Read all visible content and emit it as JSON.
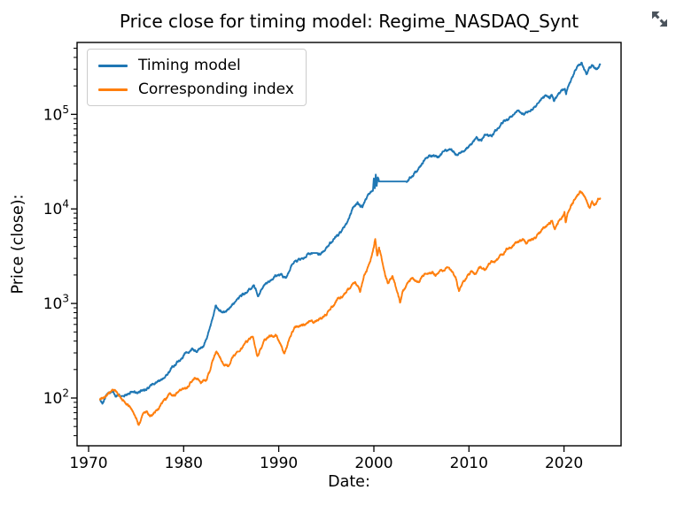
{
  "page": {
    "background": "#ffffff"
  },
  "fullscreen_button": {
    "icon": "fullscreen-expand-arrows",
    "color": "#4b535c"
  },
  "chart_data": {
    "type": "line",
    "title": "Price close for timing model: Regime_NASDAQ_Synt",
    "xlabel": "Date:",
    "ylabel": "Price (close):",
    "yscale": "log",
    "grid": false,
    "legend_position": "upper left",
    "axis_color": "#000000",
    "xlim": [
      1968.79,
      2026.0
    ],
    "ylim_log10": [
      1.495,
      5.76
    ],
    "x_ticks": [
      1970,
      1980,
      1990,
      2000,
      2010,
      2020
    ],
    "x_ticklabels": [
      "1970",
      "1980",
      "1990",
      "2000",
      "2010",
      "2020"
    ],
    "y_ticks": [
      100,
      1000,
      10000,
      100000
    ],
    "y_ticklabels": [
      "10^2",
      "10^3",
      "10^4",
      "10^5"
    ],
    "series": [
      {
        "name": "Timing model",
        "color": "#1f77b4",
        "points": [
          [
            1971.2,
            97
          ],
          [
            1971.45,
            87
          ],
          [
            1971.8,
            104
          ],
          [
            1972.2,
            113
          ],
          [
            1972.6,
            117
          ],
          [
            1972.9,
            103
          ],
          [
            1973.2,
            109
          ],
          [
            1973.7,
            105
          ],
          [
            1974.3,
            110
          ],
          [
            1975.0,
            114
          ],
          [
            1975.6,
            119
          ],
          [
            1976.2,
            128
          ],
          [
            1976.9,
            139
          ],
          [
            1977.6,
            156
          ],
          [
            1978.2,
            176
          ],
          [
            1978.65,
            206
          ],
          [
            1979.2,
            226
          ],
          [
            1979.7,
            256
          ],
          [
            1980.3,
            306
          ],
          [
            1980.9,
            336
          ],
          [
            1981.4,
            306
          ],
          [
            1981.9,
            341
          ],
          [
            1982.4,
            420
          ],
          [
            1982.9,
            620
          ],
          [
            1983.35,
            950
          ],
          [
            1983.8,
            851
          ],
          [
            1984.2,
            822
          ],
          [
            1984.8,
            882
          ],
          [
            1985.5,
            1060
          ],
          [
            1986.2,
            1270
          ],
          [
            1986.9,
            1430
          ],
          [
            1987.4,
            1560
          ],
          [
            1987.8,
            1190
          ],
          [
            1988.3,
            1450
          ],
          [
            1988.8,
            1660
          ],
          [
            1989.5,
            1910
          ],
          [
            1990.2,
            2050
          ],
          [
            1990.7,
            1860
          ],
          [
            1991.3,
            2500
          ],
          [
            1991.8,
            2820
          ],
          [
            1992.5,
            3010
          ],
          [
            1993.2,
            3320
          ],
          [
            1993.9,
            3410
          ],
          [
            1994.4,
            3300
          ],
          [
            1995.0,
            3910
          ],
          [
            1995.7,
            4600
          ],
          [
            1996.3,
            5310
          ],
          [
            1996.9,
            6400
          ],
          [
            1997.4,
            8010
          ],
          [
            1997.8,
            10200
          ],
          [
            1998.3,
            11800
          ],
          [
            1998.8,
            10400
          ],
          [
            1999.3,
            13500
          ],
          [
            1999.9,
            15500
          ],
          [
            2000.0,
            21000
          ],
          [
            2000.1,
            16500
          ],
          [
            2000.2,
            23100
          ],
          [
            2000.3,
            17500
          ],
          [
            2000.42,
            21500
          ],
          [
            2000.55,
            19500
          ],
          [
            2003.4,
            19500
          ],
          [
            2003.8,
            21600
          ],
          [
            2004.3,
            24500
          ],
          [
            2004.8,
            27600
          ],
          [
            2005.1,
            30100
          ],
          [
            2005.5,
            34600
          ],
          [
            2006.0,
            36100
          ],
          [
            2006.6,
            35600
          ],
          [
            2007.2,
            39600
          ],
          [
            2007.9,
            42600
          ],
          [
            2008.4,
            40100
          ],
          [
            2008.8,
            37100
          ],
          [
            2009.2,
            39600
          ],
          [
            2009.8,
            44600
          ],
          [
            2010.4,
            51000
          ],
          [
            2010.9,
            56100
          ],
          [
            2011.3,
            52600
          ],
          [
            2011.9,
            61100
          ],
          [
            2012.4,
            58600
          ],
          [
            2013.0,
            70100
          ],
          [
            2013.6,
            83100
          ],
          [
            2014.2,
            90100
          ],
          [
            2014.8,
            101000
          ],
          [
            2015.2,
            110000
          ],
          [
            2015.8,
            99100
          ],
          [
            2016.3,
            108000
          ],
          [
            2016.9,
            121000
          ],
          [
            2017.5,
            140000
          ],
          [
            2018.1,
            157000
          ],
          [
            2018.5,
            147000
          ],
          [
            2018.7,
            161000
          ],
          [
            2018.95,
            138000
          ],
          [
            2019.4,
            166000
          ],
          [
            2019.9,
            181000
          ],
          [
            2020.1,
            186000
          ],
          [
            2020.22,
            163000
          ],
          [
            2020.5,
            205000
          ],
          [
            2020.9,
            250000
          ],
          [
            2021.3,
            305000
          ],
          [
            2021.6,
            332000
          ],
          [
            2021.85,
            352000
          ],
          [
            2022.1,
            298000
          ],
          [
            2022.35,
            265000
          ],
          [
            2022.55,
            292000
          ],
          [
            2022.75,
            312000
          ],
          [
            2022.95,
            332000
          ],
          [
            2023.15,
            312000
          ],
          [
            2023.4,
            303000
          ],
          [
            2023.6,
            308000
          ],
          [
            2023.8,
            338000
          ]
        ]
      },
      {
        "name": "Corresponding index",
        "color": "#ff7f0e",
        "points": [
          [
            1971.2,
            96
          ],
          [
            1971.5,
            99
          ],
          [
            1971.8,
            104
          ],
          [
            1972.3,
            116
          ],
          [
            1972.6,
            121
          ],
          [
            1973.0,
            114
          ],
          [
            1973.4,
            101
          ],
          [
            1973.9,
            88
          ],
          [
            1974.4,
            80
          ],
          [
            1974.9,
            64
          ],
          [
            1975.25,
            52
          ],
          [
            1975.7,
            67
          ],
          [
            1976.1,
            72
          ],
          [
            1976.6,
            66
          ],
          [
            1977.1,
            74
          ],
          [
            1977.6,
            86
          ],
          [
            1978.1,
            96
          ],
          [
            1978.6,
            112
          ],
          [
            1979.0,
            107
          ],
          [
            1979.5,
            118
          ],
          [
            1980.0,
            125
          ],
          [
            1980.4,
            129
          ],
          [
            1980.9,
            151
          ],
          [
            1981.3,
            161
          ],
          [
            1981.8,
            143
          ],
          [
            1982.3,
            151
          ],
          [
            1982.7,
            186
          ],
          [
            1983.0,
            241
          ],
          [
            1983.45,
            311
          ],
          [
            1984.1,
            236
          ],
          [
            1984.7,
            216
          ],
          [
            1985.3,
            281
          ],
          [
            1986.0,
            331
          ],
          [
            1986.7,
            391
          ],
          [
            1987.3,
            437
          ],
          [
            1987.75,
            278
          ],
          [
            1988.1,
            331
          ],
          [
            1988.7,
            426
          ],
          [
            1989.3,
            449
          ],
          [
            1989.8,
            456
          ],
          [
            1990.1,
            381
          ],
          [
            1990.6,
            296
          ],
          [
            1991.1,
            421
          ],
          [
            1991.8,
            566
          ],
          [
            1992.6,
            601
          ],
          [
            1993.4,
            661
          ],
          [
            1994.3,
            691
          ],
          [
            1995.0,
            751
          ],
          [
            1995.8,
            961
          ],
          [
            1996.5,
            1150
          ],
          [
            1997.0,
            1300
          ],
          [
            1997.6,
            1500
          ],
          [
            1998.05,
            1680
          ],
          [
            1998.55,
            1320
          ],
          [
            1999.0,
            2000
          ],
          [
            1999.5,
            2600
          ],
          [
            1999.9,
            3600
          ],
          [
            2000.15,
            4810
          ],
          [
            2000.35,
            3210
          ],
          [
            2000.55,
            3910
          ],
          [
            2000.8,
            3110
          ],
          [
            2001.1,
            2210
          ],
          [
            2001.45,
            1650
          ],
          [
            2001.75,
            1810
          ],
          [
            2001.95,
            1950
          ],
          [
            2002.3,
            1500
          ],
          [
            2002.75,
            1020
          ],
          [
            2003.05,
            1350
          ],
          [
            2003.5,
            1620
          ],
          [
            2004.1,
            1850
          ],
          [
            2004.6,
            1700
          ],
          [
            2005.1,
            1950
          ],
          [
            2005.6,
            2050
          ],
          [
            2006.1,
            2150
          ],
          [
            2006.5,
            1950
          ],
          [
            2007.0,
            2250
          ],
          [
            2007.75,
            2400
          ],
          [
            2008.3,
            2150
          ],
          [
            2008.6,
            1900
          ],
          [
            2008.95,
            1350
          ],
          [
            2009.4,
            1700
          ],
          [
            2009.9,
            2000
          ],
          [
            2010.4,
            2150
          ],
          [
            2010.7,
            2050
          ],
          [
            2011.2,
            2450
          ],
          [
            2011.8,
            2300
          ],
          [
            2012.5,
            2750
          ],
          [
            2013.2,
            3150
          ],
          [
            2013.9,
            3700
          ],
          [
            2014.6,
            4100
          ],
          [
            2015.1,
            4500
          ],
          [
            2015.7,
            4810
          ],
          [
            2016.0,
            4310
          ],
          [
            2016.4,
            4710
          ],
          [
            2016.8,
            4810
          ],
          [
            2017.3,
            5500
          ],
          [
            2017.9,
            6300
          ],
          [
            2018.4,
            7000
          ],
          [
            2018.75,
            7500
          ],
          [
            2019.05,
            6100
          ],
          [
            2019.4,
            7300
          ],
          [
            2019.8,
            8200
          ],
          [
            2020.05,
            9300
          ],
          [
            2020.17,
            7200
          ],
          [
            2020.5,
            9600
          ],
          [
            2020.9,
            11500
          ],
          [
            2021.3,
            13500
          ],
          [
            2021.75,
            15300
          ],
          [
            2022.05,
            14000
          ],
          [
            2022.3,
            12600
          ],
          [
            2022.5,
            11200
          ],
          [
            2022.7,
            10200
          ],
          [
            2022.95,
            12100
          ],
          [
            2023.2,
            10900
          ],
          [
            2023.45,
            11800
          ],
          [
            2023.65,
            12700
          ],
          [
            2023.8,
            12900
          ]
        ]
      }
    ]
  }
}
